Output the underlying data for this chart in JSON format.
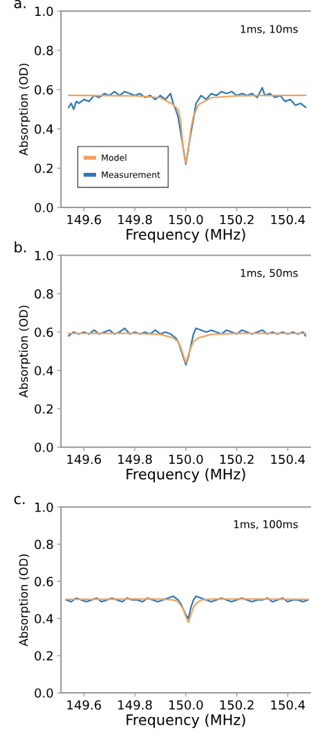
{
  "chart_data": [
    {
      "type": "line",
      "title": "a.",
      "xlabel": "Frequency (MHz)",
      "ylabel": "Absorption (OD)",
      "annotations": [
        "1ms, 10ms"
      ],
      "xlim": [
        149.51,
        150.49
      ],
      "ylim": [
        0,
        1.0
      ],
      "xticks": [
        {
          "value": 149.6,
          "label": "149.6"
        },
        {
          "value": 149.8,
          "label": "149.8"
        },
        {
          "value": 150.0,
          "label": "150.0"
        },
        {
          "value": 150.2,
          "label": "150.2"
        },
        {
          "value": 150.4,
          "label": "150.4"
        }
      ],
      "yticks": [
        {
          "value": 0,
          "label": "0.0"
        },
        {
          "value": 0.2,
          "label": "0.2"
        },
        {
          "value": 0.4,
          "label": "0.4"
        },
        {
          "value": 0.6,
          "label": "0.6"
        },
        {
          "value": 0.8,
          "label": "0.8"
        },
        {
          "value": 1.0,
          "label": "1.0"
        }
      ],
      "legend": "bottom left",
      "grid": false,
      "series": [
        {
          "name": "Model",
          "color": "#f5a05a",
          "x": [
            149.54,
            149.7,
            149.8,
            149.9,
            149.95,
            149.97,
            149.98,
            149.99,
            150.0,
            150.01,
            150.02,
            150.03,
            150.05,
            150.1,
            150.2,
            150.3,
            150.47
          ],
          "values": [
            0.571,
            0.569,
            0.568,
            0.559,
            0.524,
            0.497,
            0.44,
            0.29,
            0.225,
            0.29,
            0.4,
            0.465,
            0.524,
            0.559,
            0.568,
            0.57,
            0.571
          ]
        },
        {
          "name": "Measurement",
          "color": "#2a78b8",
          "x": [
            149.54,
            149.55,
            149.56,
            149.57,
            149.58,
            149.6,
            149.62,
            149.64,
            149.66,
            149.68,
            149.7,
            149.72,
            149.74,
            149.76,
            149.78,
            149.8,
            149.82,
            149.84,
            149.86,
            149.88,
            149.9,
            149.92,
            149.94,
            149.95,
            149.96,
            149.97,
            149.98,
            149.99,
            150.0,
            150.01,
            150.02,
            150.03,
            150.04,
            150.05,
            150.06,
            150.08,
            150.1,
            150.12,
            150.14,
            150.16,
            150.18,
            150.2,
            150.22,
            150.24,
            150.26,
            150.28,
            150.3,
            150.31,
            150.33,
            150.35,
            150.37,
            150.39,
            150.41,
            150.43,
            150.45,
            150.47
          ],
          "values": [
            0.51,
            0.53,
            0.5,
            0.54,
            0.53,
            0.55,
            0.54,
            0.57,
            0.56,
            0.58,
            0.57,
            0.59,
            0.57,
            0.59,
            0.58,
            0.57,
            0.58,
            0.56,
            0.57,
            0.55,
            0.57,
            0.55,
            0.58,
            0.53,
            0.5,
            0.46,
            0.38,
            0.3,
            0.22,
            0.3,
            0.38,
            0.45,
            0.53,
            0.55,
            0.57,
            0.55,
            0.58,
            0.57,
            0.59,
            0.58,
            0.59,
            0.57,
            0.58,
            0.57,
            0.58,
            0.56,
            0.61,
            0.57,
            0.58,
            0.56,
            0.57,
            0.54,
            0.55,
            0.52,
            0.53,
            0.51
          ]
        }
      ]
    },
    {
      "type": "line",
      "title": "b.",
      "xlabel": "Frequency (MHz)",
      "ylabel": "Absorption (OD)",
      "annotations": [
        "1ms, 50ms"
      ],
      "xlim": [
        149.51,
        150.49
      ],
      "ylim": [
        0,
        1.0
      ],
      "xticks": [
        {
          "value": 149.6,
          "label": "149.6"
        },
        {
          "value": 149.8,
          "label": "149.8"
        },
        {
          "value": 150.0,
          "label": "150.0"
        },
        {
          "value": 150.2,
          "label": "150.2"
        },
        {
          "value": 150.4,
          "label": "150.4"
        }
      ],
      "yticks": [
        {
          "value": 0,
          "label": "0.0"
        },
        {
          "value": 0.2,
          "label": "0.2"
        },
        {
          "value": 0.4,
          "label": "0.4"
        },
        {
          "value": 0.6,
          "label": "0.6"
        },
        {
          "value": 0.8,
          "label": "0.8"
        },
        {
          "value": 1.0,
          "label": "1.0"
        }
      ],
      "grid": false,
      "series": [
        {
          "color": "#f5a05a",
          "x": [
            149.54,
            149.8,
            149.9,
            149.95,
            149.97,
            149.98,
            149.99,
            150.0,
            150.01,
            150.02,
            150.03,
            150.05,
            150.1,
            150.2,
            150.47
          ],
          "values": [
            0.593,
            0.593,
            0.588,
            0.57,
            0.55,
            0.52,
            0.48,
            0.44,
            0.48,
            0.52,
            0.55,
            0.57,
            0.588,
            0.593,
            0.593
          ]
        },
        {
          "color": "#2a78b8",
          "x": [
            149.54,
            149.56,
            149.58,
            149.6,
            149.62,
            149.64,
            149.66,
            149.68,
            149.7,
            149.72,
            149.74,
            149.76,
            149.78,
            149.8,
            149.82,
            149.84,
            149.86,
            149.88,
            149.9,
            149.92,
            149.94,
            149.96,
            149.97,
            149.98,
            149.99,
            150.0,
            150.01,
            150.02,
            150.03,
            150.04,
            150.06,
            150.08,
            150.1,
            150.12,
            150.14,
            150.16,
            150.18,
            150.2,
            150.22,
            150.24,
            150.26,
            150.28,
            150.3,
            150.32,
            150.34,
            150.36,
            150.38,
            150.4,
            150.42,
            150.44,
            150.46,
            150.47
          ],
          "values": [
            0.58,
            0.6,
            0.59,
            0.6,
            0.59,
            0.61,
            0.59,
            0.6,
            0.61,
            0.59,
            0.6,
            0.62,
            0.59,
            0.6,
            0.59,
            0.6,
            0.59,
            0.61,
            0.59,
            0.6,
            0.59,
            0.57,
            0.55,
            0.51,
            0.47,
            0.43,
            0.47,
            0.53,
            0.59,
            0.62,
            0.61,
            0.6,
            0.61,
            0.6,
            0.59,
            0.61,
            0.6,
            0.59,
            0.61,
            0.6,
            0.59,
            0.6,
            0.61,
            0.59,
            0.6,
            0.59,
            0.6,
            0.59,
            0.6,
            0.59,
            0.6,
            0.58
          ]
        }
      ]
    },
    {
      "type": "line",
      "title": "c.",
      "xlabel": "Frequency (MHz)",
      "ylabel": "Absorption (OD)",
      "annotations": [
        "1ms, 100ms"
      ],
      "xlim": [
        149.51,
        150.49
      ],
      "ylim": [
        0,
        1.0
      ],
      "xticks": [
        {
          "value": 149.6,
          "label": "149.6"
        },
        {
          "value": 149.8,
          "label": "149.8"
        },
        {
          "value": 150.0,
          "label": "150.0"
        },
        {
          "value": 150.2,
          "label": "150.2"
        },
        {
          "value": 150.4,
          "label": "150.4"
        }
      ],
      "yticks": [
        {
          "value": 0,
          "label": "0.0"
        },
        {
          "value": 0.2,
          "label": "0.2"
        },
        {
          "value": 0.4,
          "label": "0.4"
        },
        {
          "value": 0.6,
          "label": "0.6"
        },
        {
          "value": 0.8,
          "label": "0.8"
        },
        {
          "value": 1.0,
          "label": "1.0"
        }
      ],
      "grid": false,
      "series": [
        {
          "color": "#f5a05a",
          "x": [
            149.53,
            149.8,
            149.9,
            149.95,
            149.97,
            149.98,
            149.99,
            150.0,
            150.01,
            150.02,
            150.03,
            150.04,
            150.06,
            150.1,
            150.3,
            150.48
          ],
          "values": [
            0.503,
            0.505,
            0.505,
            0.5,
            0.49,
            0.47,
            0.45,
            0.41,
            0.38,
            0.42,
            0.46,
            0.48,
            0.5,
            0.505,
            0.505,
            0.503
          ]
        },
        {
          "color": "#2a78b8",
          "x": [
            149.53,
            149.55,
            149.57,
            149.59,
            149.61,
            149.63,
            149.65,
            149.67,
            149.69,
            149.71,
            149.73,
            149.75,
            149.77,
            149.79,
            149.81,
            149.83,
            149.85,
            149.87,
            149.89,
            149.91,
            149.93,
            149.95,
            149.97,
            149.98,
            149.99,
            150.0,
            150.01,
            150.02,
            150.03,
            150.04,
            150.06,
            150.08,
            150.1,
            150.12,
            150.14,
            150.16,
            150.18,
            150.2,
            150.22,
            150.24,
            150.26,
            150.28,
            150.3,
            150.32,
            150.34,
            150.36,
            150.38,
            150.4,
            150.42,
            150.44,
            150.46,
            150.48
          ],
          "values": [
            0.5,
            0.49,
            0.51,
            0.5,
            0.49,
            0.5,
            0.51,
            0.49,
            0.5,
            0.51,
            0.5,
            0.49,
            0.51,
            0.5,
            0.5,
            0.49,
            0.51,
            0.5,
            0.49,
            0.5,
            0.51,
            0.52,
            0.5,
            0.48,
            0.45,
            0.42,
            0.4,
            0.46,
            0.5,
            0.52,
            0.51,
            0.5,
            0.49,
            0.5,
            0.51,
            0.5,
            0.49,
            0.5,
            0.51,
            0.5,
            0.49,
            0.5,
            0.5,
            0.51,
            0.49,
            0.5,
            0.51,
            0.49,
            0.5,
            0.5,
            0.49,
            0.5
          ]
        }
      ]
    }
  ]
}
